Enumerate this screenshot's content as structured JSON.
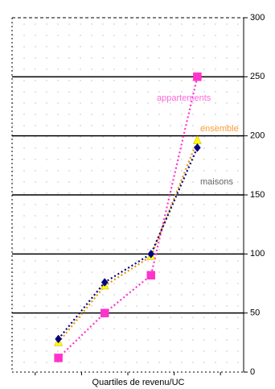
{
  "chart_data": {
    "type": "line",
    "x_label": "Quartiles de revenu/UC",
    "categories": [
      null,
      null,
      null,
      null
    ],
    "series": [
      {
        "name": "appartements",
        "color": "#ff33cc",
        "label_color": "#ff66dd",
        "marker": "square",
        "values": [
          12,
          50,
          82,
          250
        ]
      },
      {
        "name": "ensemble",
        "color": "#ffff00",
        "label_color": "#ff9933",
        "marker": "triangle",
        "values": [
          25,
          73,
          98,
          196
        ]
      },
      {
        "name": "maisons",
        "color": "#000080",
        "label_color": "#666666",
        "marker": "diamond",
        "values": [
          28,
          76,
          100,
          190
        ]
      }
    ],
    "ylim": [
      0,
      300
    ],
    "yticks": [
      0,
      50,
      100,
      150,
      200,
      250,
      300
    ],
    "grid": true
  }
}
